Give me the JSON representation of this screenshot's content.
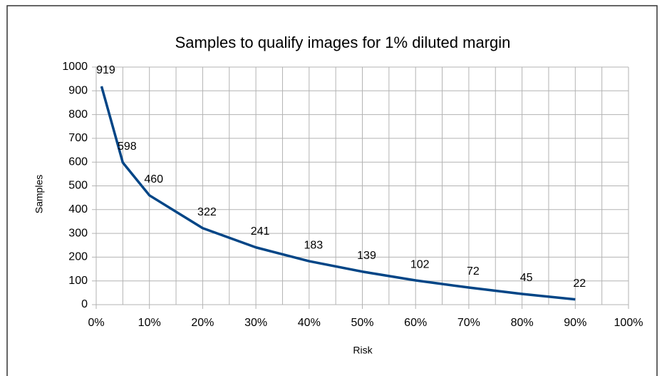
{
  "chart_data": {
    "type": "line",
    "title": "Samples to qualify images for 1% diluted margin",
    "x_label": "Risk",
    "y_label": "Samples",
    "x": [
      1,
      5,
      10,
      20,
      30,
      40,
      50,
      60,
      70,
      80,
      90
    ],
    "series": [
      {
        "name": "Samples",
        "color": "#004586",
        "values": [
          919,
          598,
          460,
          322,
          241,
          183,
          139,
          102,
          72,
          45,
          22
        ]
      }
    ],
    "xlim": [
      0,
      100
    ],
    "xticks": [
      {
        "value": 0,
        "label": "0%"
      },
      {
        "value": 10,
        "label": "10%"
      },
      {
        "value": 20,
        "label": "20%"
      },
      {
        "value": 30,
        "label": "30%"
      },
      {
        "value": 40,
        "label": "40%"
      },
      {
        "value": 50,
        "label": "50%"
      },
      {
        "value": 60,
        "label": "60%"
      },
      {
        "value": 70,
        "label": "70%"
      },
      {
        "value": 80,
        "label": "80%"
      },
      {
        "value": 90,
        "label": "90%"
      },
      {
        "value": 100,
        "label": "100%"
      }
    ],
    "xminorticks": [
      5,
      15,
      25,
      35,
      45,
      55,
      65,
      75,
      85,
      95
    ],
    "ylim": [
      0,
      1000
    ],
    "yticks": [
      0,
      100,
      200,
      300,
      400,
      500,
      600,
      700,
      800,
      900,
      1000
    ],
    "grid": true,
    "data_labels": true
  }
}
